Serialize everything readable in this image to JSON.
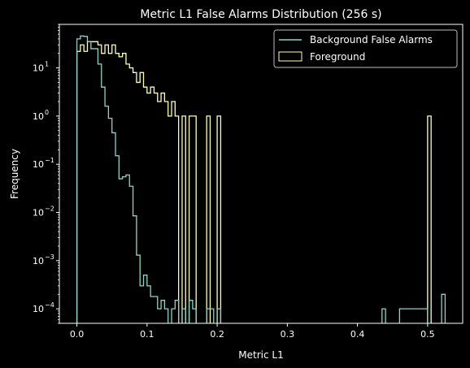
{
  "chart_data": {
    "type": "histogram",
    "title": "Metric L1 False Alarms Distribution (256 s)",
    "xlabel": "Metric L1",
    "ylabel": "Frequency",
    "xlim": [
      -0.025,
      0.55
    ],
    "ylim": [
      5e-05,
      80
    ],
    "yscale": "log",
    "xticks": [
      0.0,
      0.1,
      0.2,
      0.3,
      0.4,
      0.5
    ],
    "xtick_labels": [
      "0.0",
      "0.1",
      "0.2",
      "0.3",
      "0.4",
      "0.5"
    ],
    "yticks": [
      0.0001,
      0.001,
      0.01,
      0.1,
      1,
      10
    ],
    "ytick_labels": [
      {
        "base": "10",
        "exp": "−4"
      },
      {
        "base": "10",
        "exp": "−3"
      },
      {
        "base": "10",
        "exp": "−2"
      },
      {
        "base": "10",
        "exp": "−1"
      },
      {
        "base": "10",
        "exp": "0"
      },
      {
        "base": "10",
        "exp": "1"
      }
    ],
    "legend": "top-right",
    "series": [
      {
        "name": "Background False Alarms",
        "color": "#8dd3c7",
        "steps": [
          [
            0.0,
            40
          ],
          [
            0.005,
            46
          ],
          [
            0.01,
            45
          ],
          [
            0.015,
            35
          ],
          [
            0.02,
            25
          ],
          [
            0.025,
            25
          ],
          [
            0.03,
            12
          ],
          [
            0.035,
            4
          ],
          [
            0.04,
            1.6
          ],
          [
            0.045,
            0.9
          ],
          [
            0.05,
            0.45
          ],
          [
            0.055,
            0.15
          ],
          [
            0.06,
            0.05
          ],
          [
            0.065,
            0.055
          ],
          [
            0.07,
            0.06
          ],
          [
            0.075,
            0.035
          ],
          [
            0.08,
            0.0085
          ],
          [
            0.085,
            0.0013
          ],
          [
            0.09,
            0.0003
          ],
          [
            0.095,
            0.0005
          ],
          [
            0.1,
            0.0003
          ],
          [
            0.105,
            0.00018
          ],
          [
            0.11,
            0.00018
          ],
          [
            0.115,
            0.0001
          ],
          [
            0.12,
            0.00015
          ],
          [
            0.125,
            0.0001
          ],
          [
            0.13,
            null
          ],
          [
            0.135,
            0.0001
          ],
          [
            0.14,
            0.00015
          ],
          [
            0.145,
            null
          ],
          [
            0.15,
            0.0001
          ],
          [
            0.155,
            null
          ],
          [
            0.16,
            0.00015
          ],
          [
            0.165,
            0.0001
          ],
          [
            0.17,
            null
          ],
          [
            0.175,
            null
          ],
          [
            0.18,
            null
          ],
          [
            0.185,
            0.0001
          ],
          [
            0.19,
            0.0001
          ],
          [
            0.195,
            null
          ],
          [
            0.2,
            0.0001
          ],
          [
            0.205,
            null
          ],
          [
            0.435,
            0.0001
          ],
          [
            0.44,
            null
          ],
          [
            0.46,
            0.0001
          ],
          [
            0.465,
            0.0001
          ],
          [
            0.47,
            0.0001
          ],
          [
            0.475,
            0.0001
          ],
          [
            0.48,
            0.0001
          ],
          [
            0.485,
            0.0001
          ],
          [
            0.49,
            0.0001
          ],
          [
            0.495,
            0.0001
          ],
          [
            0.5,
            null
          ],
          [
            0.52,
            0.0002
          ],
          [
            0.525,
            null
          ]
        ]
      },
      {
        "name": "Foreground",
        "color": "#ffffb3",
        "steps": [
          [
            0.0,
            22
          ],
          [
            0.005,
            30
          ],
          [
            0.01,
            22
          ],
          [
            0.015,
            35
          ],
          [
            0.02,
            35
          ],
          [
            0.025,
            35
          ],
          [
            0.03,
            30
          ],
          [
            0.035,
            20
          ],
          [
            0.04,
            30
          ],
          [
            0.045,
            20
          ],
          [
            0.05,
            30
          ],
          [
            0.055,
            20
          ],
          [
            0.06,
            17
          ],
          [
            0.065,
            20
          ],
          [
            0.07,
            12
          ],
          [
            0.075,
            10
          ],
          [
            0.08,
            8
          ],
          [
            0.085,
            5
          ],
          [
            0.09,
            8
          ],
          [
            0.095,
            4
          ],
          [
            0.1,
            3
          ],
          [
            0.105,
            4
          ],
          [
            0.11,
            3
          ],
          [
            0.115,
            2
          ],
          [
            0.12,
            3
          ],
          [
            0.125,
            2
          ],
          [
            0.13,
            1
          ],
          [
            0.135,
            2
          ],
          [
            0.14,
            1
          ],
          [
            0.145,
            null
          ],
          [
            0.15,
            1
          ],
          [
            0.155,
            null
          ],
          [
            0.16,
            1
          ],
          [
            0.165,
            1
          ],
          [
            0.17,
            null
          ],
          [
            0.175,
            null
          ],
          [
            0.18,
            null
          ],
          [
            0.185,
            1
          ],
          [
            0.19,
            null
          ],
          [
            0.195,
            null
          ],
          [
            0.2,
            1
          ],
          [
            0.205,
            null
          ],
          [
            0.5,
            1
          ],
          [
            0.505,
            null
          ]
        ]
      }
    ]
  }
}
